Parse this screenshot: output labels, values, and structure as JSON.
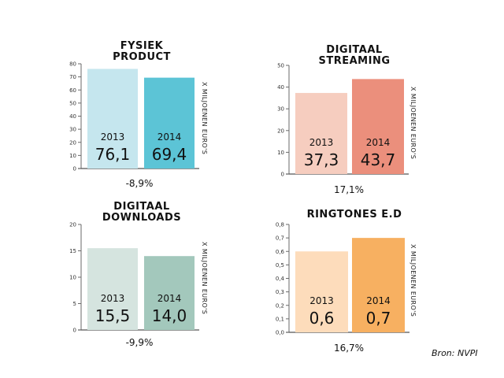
{
  "source": "Bron: NVPI",
  "chart_data": [
    {
      "type": "bar",
      "title": "FYSIEK\nPRODUCT",
      "ylabel": "X MILJOENEN EURO'S",
      "categories": [
        "2013",
        "2014"
      ],
      "values": [
        76.1,
        69.4
      ],
      "value_labels": [
        "76,1",
        "69,4"
      ],
      "colors": [
        "#c5e6ee",
        "#5cc4d6"
      ],
      "ylim": [
        0,
        80
      ],
      "yticks": [
        0,
        10,
        20,
        30,
        40,
        50,
        60,
        70,
        80
      ],
      "ytick_labels": [
        "0",
        "10",
        "20",
        "30",
        "40",
        "50",
        "60",
        "70",
        "80"
      ],
      "change": "-8,9%"
    },
    {
      "type": "bar",
      "title": "DIGITAAL\nSTREAMING",
      "ylabel": "X MILJOENEN EURO'S",
      "categories": [
        "2013",
        "2014"
      ],
      "values": [
        37.3,
        43.7
      ],
      "value_labels": [
        "37,3",
        "43,7"
      ],
      "colors": [
        "#f6cdbf",
        "#eb8f7c"
      ],
      "ylim": [
        0,
        50
      ],
      "yticks": [
        0,
        10,
        20,
        30,
        40,
        50
      ],
      "ytick_labels": [
        "0",
        "10",
        "20",
        "30",
        "40",
        "50"
      ],
      "change": "17,1%"
    },
    {
      "type": "bar",
      "title": "DIGITAAL\nDOWNLOADS",
      "ylabel": "X MILJOENEN EURO'S",
      "categories": [
        "2013",
        "2014"
      ],
      "values": [
        15.5,
        14.0
      ],
      "value_labels": [
        "15,5",
        "14,0"
      ],
      "colors": [
        "#d5e4df",
        "#a3c8bc"
      ],
      "ylim": [
        0,
        20
      ],
      "yticks": [
        0,
        5,
        10,
        15,
        20
      ],
      "ytick_labels": [
        "0",
        "5",
        "10",
        "15",
        "20"
      ],
      "change": "-9,9%"
    },
    {
      "type": "bar",
      "title": "RINGTONES E.D",
      "ylabel": "X MILJOENEN EURO'S",
      "categories": [
        "2013",
        "2014"
      ],
      "values": [
        0.6,
        0.7
      ],
      "value_labels": [
        "0,6",
        "0,7"
      ],
      "colors": [
        "#fddcbb",
        "#f7b061"
      ],
      "ylim": [
        0,
        0.8
      ],
      "yticks": [
        0,
        0.1,
        0.2,
        0.3,
        0.4,
        0.5,
        0.6,
        0.7,
        0.8
      ],
      "ytick_labels": [
        "0,0",
        "0,1",
        "0,2",
        "0,3",
        "0,4",
        "0,5",
        "0,6",
        "0,7",
        "0,8"
      ],
      "change": "16,7%"
    }
  ]
}
